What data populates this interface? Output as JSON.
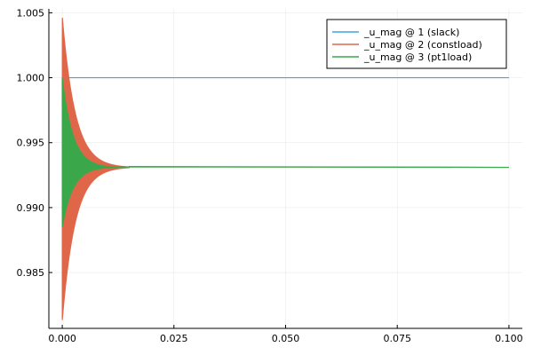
{
  "chart_data": {
    "type": "line",
    "title": "",
    "xlabel": "",
    "ylabel": "",
    "xlim": [
      -0.003,
      0.103
    ],
    "ylim": [
      0.9807,
      1.0053
    ],
    "grid": true,
    "legend_position": "top-right",
    "x_ticks": [
      0.0,
      0.025,
      0.05,
      0.075,
      0.1
    ],
    "x_tick_labels": [
      "0.000",
      "0.025",
      "0.050",
      "0.075",
      "0.100"
    ],
    "y_ticks": [
      0.985,
      0.99,
      0.995,
      1.0,
      1.005
    ],
    "y_tick_labels": [
      "0.985",
      "0.990",
      "0.995",
      "1.000",
      "1.005"
    ],
    "series": [
      {
        "name": "_u_mag @ 1 (slack)",
        "color": "#3da5e0",
        "behavior": "constant",
        "value": 1.0,
        "x_range": [
          0.0,
          0.1
        ]
      },
      {
        "name": "_u_mag @ 2 (constload)",
        "color": "#e0664a",
        "behavior": "damped_oscillation",
        "steady_value": 0.9931,
        "upper_peak": 1.0047,
        "lower_peak": 0.9813,
        "initial_value": 1.0,
        "settle_time": 0.012,
        "x_range": [
          0.0,
          0.1
        ]
      },
      {
        "name": "_u_mag @ 3 (pt1load)",
        "color": "#3aa84a",
        "behavior": "damped_oscillation",
        "steady_value": 0.9931,
        "upper_peak": 1.0,
        "lower_peak": 0.9885,
        "initial_value": 1.0,
        "settle_time": 0.01,
        "x_range": [
          0.0,
          0.1
        ]
      }
    ]
  }
}
